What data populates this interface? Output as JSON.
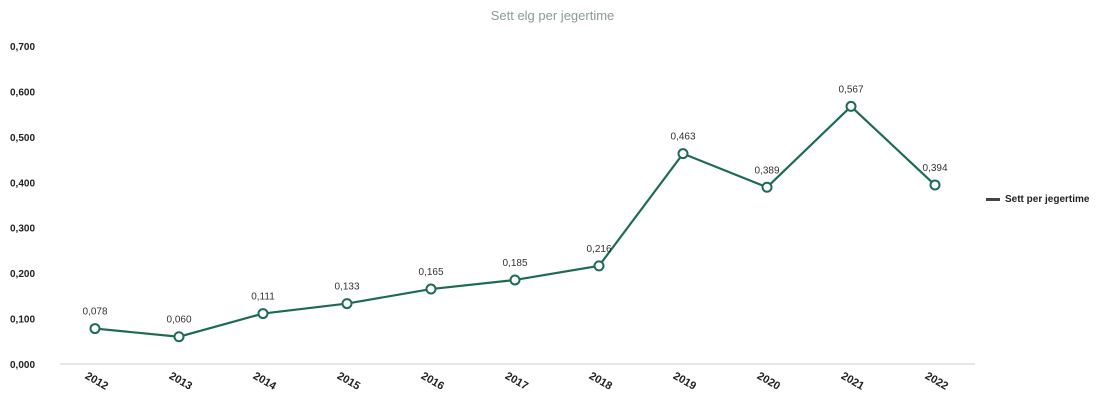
{
  "chart_data": {
    "type": "line",
    "title": "Sett elg per jegertime",
    "categories": [
      "2012",
      "2013",
      "2014",
      "2015",
      "2016",
      "2017",
      "2018",
      "2019",
      "2020",
      "2021",
      "2022"
    ],
    "series": [
      {
        "name": "Sett per jegertime",
        "values": [
          0.078,
          0.06,
          0.111,
          0.133,
          0.165,
          0.185,
          0.216,
          0.463,
          0.389,
          0.567,
          0.394
        ],
        "labels": [
          "0,078",
          "0,060",
          "0,111",
          "0,133",
          "0,165",
          "0,185",
          "0,216",
          "0,463",
          "0,389",
          "0,567",
          "0,394"
        ]
      }
    ],
    "yticks": [
      "0,000",
      "0,100",
      "0,200",
      "0,300",
      "0,400",
      "0,500",
      "0,600",
      "0,700"
    ],
    "ylim": [
      0,
      0.7
    ],
    "legend_position": "right",
    "grid": false,
    "colors": {
      "line": "#1e6b55",
      "marker_fill": "#ffffff",
      "axis": "#cccccc"
    }
  }
}
